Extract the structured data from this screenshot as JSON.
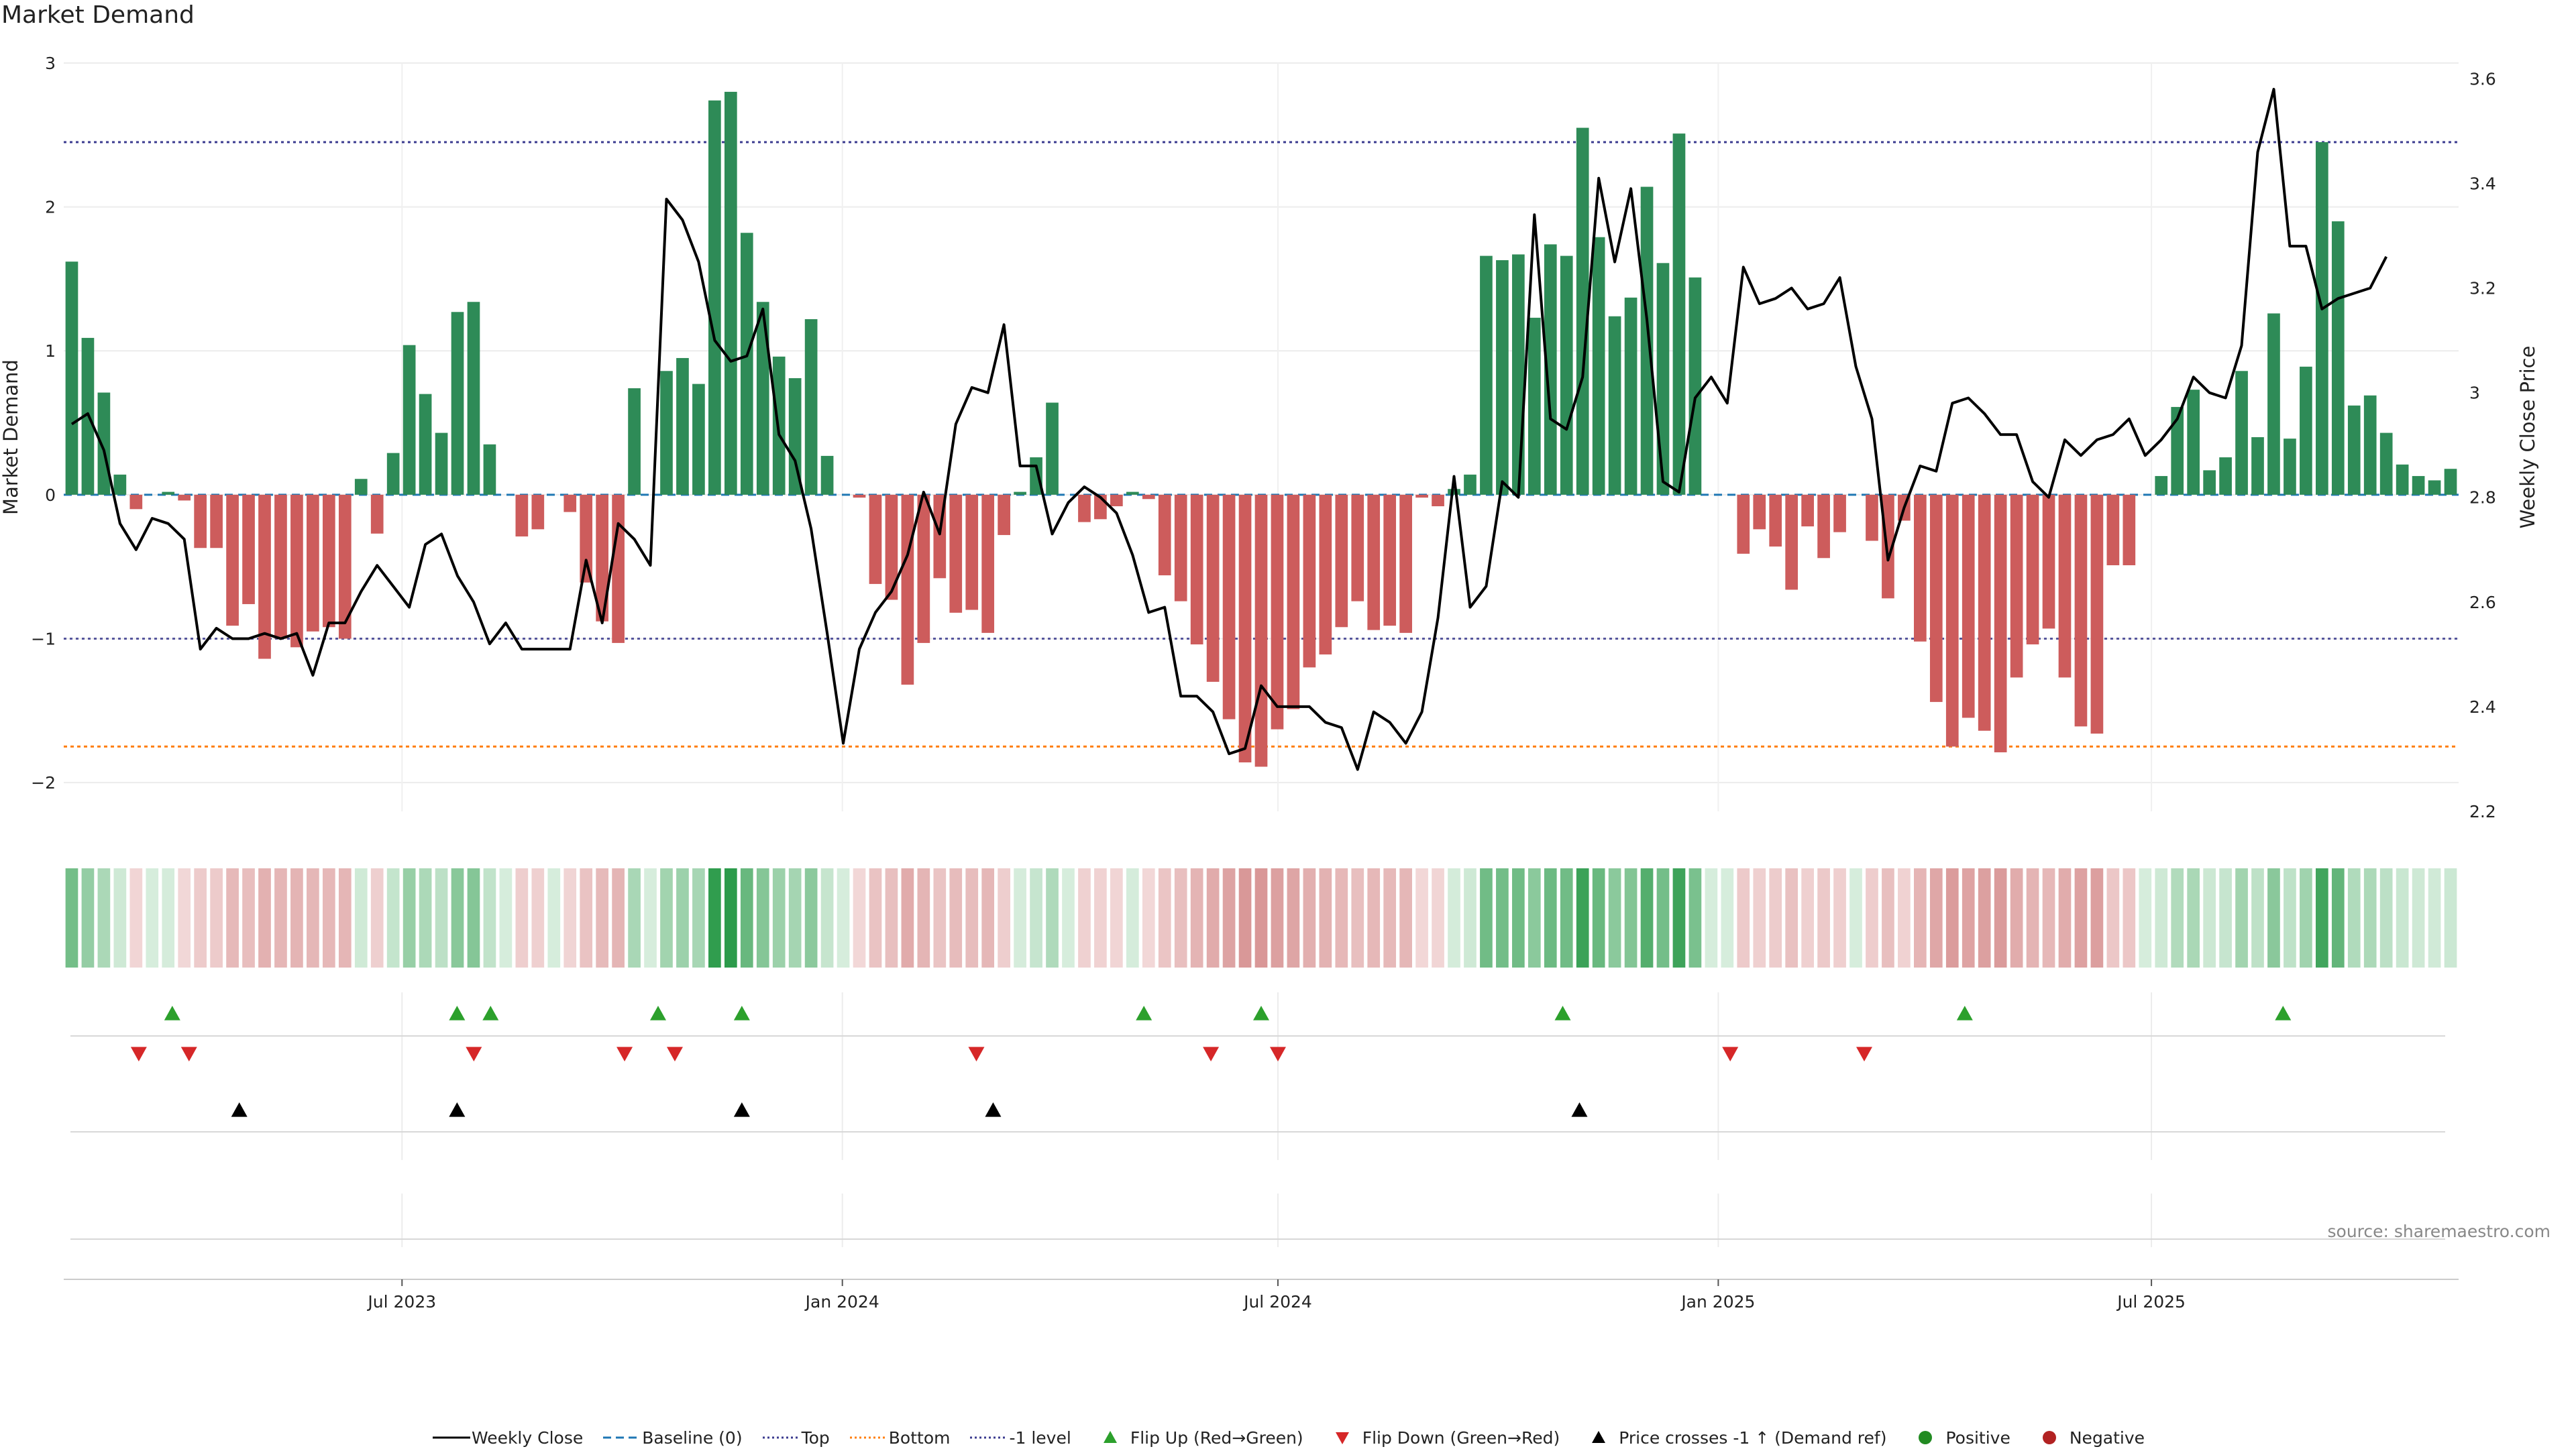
{
  "title": "Market Demand",
  "source": "source: sharemaestro.com",
  "colors": {
    "positive_bar": "#2e8b57",
    "negative_bar": "#cd5c5c",
    "price_line": "#000000",
    "baseline": "#1f77b4",
    "top": "#3b3b8f",
    "bottom": "#ff7f0e",
    "minus1": "#3b3b8f",
    "flip_up": "#2ca02c",
    "flip_down": "#d62728",
    "cross_marker": "#000000",
    "positive_dot": "#228b22",
    "negative_dot": "#b22222"
  },
  "legend": [
    {
      "label": "Weekly Close",
      "icon": "black-line-icon"
    },
    {
      "label": "Baseline (0)",
      "icon": "blue-dashed-line-icon"
    },
    {
      "label": "Top",
      "icon": "purple-dotted-line-icon"
    },
    {
      "label": "Bottom",
      "icon": "orange-dotted-line-icon"
    },
    {
      "label": "-1 level",
      "icon": "gray-dotted-line-icon"
    },
    {
      "label": "Flip Up (Red→Green)",
      "icon": "green-triangle-up-icon"
    },
    {
      "label": "Flip Down (Green→Red)",
      "icon": "red-triangle-down-icon"
    },
    {
      "label": "Price crosses -1 ↑ (Demand ref)",
      "icon": "black-triangle-up-icon"
    },
    {
      "label": "Positive",
      "icon": "green-dot-icon"
    },
    {
      "label": "Negative",
      "icon": "red-dot-icon"
    }
  ],
  "chart_data": {
    "type": "bar",
    "title": "Market Demand",
    "ylabel": "Market Demand",
    "y2label": "Weekly Close Price",
    "ylim": [
      -2.2,
      3.0
    ],
    "y2lim": [
      2.2,
      3.63
    ],
    "yticks": [
      "−2",
      "−1",
      "0",
      "1",
      "2",
      "3"
    ],
    "ytick_values": [
      -2,
      -1,
      0,
      1,
      2,
      3
    ],
    "y2ticks": [
      "2.2",
      "2.4",
      "2.6",
      "2.8",
      "3",
      "3.2",
      "3.4",
      "3.6"
    ],
    "y2tick_values": [
      2.2,
      2.4,
      2.6,
      2.8,
      3.0,
      3.2,
      3.4,
      3.6
    ],
    "x_start": "2023-02-13",
    "x_end": "2025-11-03",
    "xtick_labels": [
      "Jul 2023",
      "Jan 2024",
      "Jul 2024",
      "Jan 2025",
      "Jul 2025"
    ],
    "xtick_dates": [
      "2023-07-01",
      "2024-01-01",
      "2024-07-01",
      "2025-01-01",
      "2025-07-01"
    ],
    "levels": {
      "top": 2.45,
      "bottom": -1.75,
      "minus1": -1.0,
      "baseline": 0
    },
    "series": [
      {
        "name": "Market Demand",
        "kind": "bar",
        "values": [
          1.62,
          1.09,
          0.71,
          0.14,
          -0.1,
          0,
          0.02,
          -0.04,
          -0.37,
          -0.37,
          -0.91,
          -0.76,
          -1.14,
          -1.0,
          -1.06,
          -0.95,
          -0.92,
          -1.0,
          0.11,
          -0.27,
          0.29,
          1.04,
          0.7,
          0.43,
          1.27,
          1.34,
          0.35,
          0,
          -0.29,
          -0.24,
          0,
          -0.12,
          -0.61,
          -0.88,
          -1.03,
          0.74,
          0,
          0.86,
          0.95,
          0.77,
          2.74,
          2.8,
          1.82,
          1.34,
          0.96,
          0.81,
          1.22,
          0.27,
          0,
          -0.02,
          -0.62,
          -0.73,
          -1.32,
          -1.03,
          -0.58,
          -0.82,
          -0.8,
          -0.96,
          -0.28,
          0.02,
          0.26,
          0.64,
          0,
          -0.19,
          -0.17,
          -0.08,
          0.02,
          -0.03,
          -0.56,
          -0.74,
          -1.04,
          -1.3,
          -1.56,
          -1.86,
          -1.89,
          -1.63,
          -1.49,
          -1.2,
          -1.11,
          -0.92,
          -0.74,
          -0.94,
          -0.91,
          -0.96,
          -0.02,
          -0.08,
          0.04,
          0.14,
          1.66,
          1.63,
          1.67,
          1.23,
          1.74,
          1.66,
          2.55,
          1.79,
          1.24,
          1.37,
          2.14,
          1.61,
          2.51,
          1.51,
          0,
          0,
          -0.41,
          -0.24,
          -0.36,
          -0.66,
          -0.22,
          -0.44,
          -0.26,
          0,
          -0.32,
          -0.72,
          -0.18,
          -1.02,
          -1.44,
          -1.75,
          -1.55,
          -1.64,
          -1.79,
          -1.27,
          -1.04,
          -0.93,
          -1.27,
          -1.61,
          -1.66,
          -0.49,
          -0.49,
          0,
          0.13,
          0.61,
          0.73,
          0.17,
          0.26,
          0.86,
          0.4,
          1.26,
          0.39,
          0.89,
          2.45,
          1.9,
          0.62,
          0.69,
          0.43,
          0.21,
          0.13,
          0.1,
          0.18
        ]
      },
      {
        "name": "Weekly Close",
        "kind": "line",
        "values": [
          2.94,
          2.96,
          2.89,
          2.75,
          2.7,
          2.76,
          2.75,
          2.72,
          2.51,
          2.55,
          2.53,
          2.53,
          2.54,
          2.53,
          2.54,
          2.46,
          2.56,
          2.56,
          2.62,
          2.67,
          2.63,
          2.59,
          2.71,
          2.73,
          2.65,
          2.6,
          2.52,
          2.56,
          2.51,
          2.51,
          2.51,
          2.51,
          2.68,
          2.56,
          2.75,
          2.72,
          2.67,
          3.37,
          3.33,
          3.25,
          3.1,
          3.06,
          3.07,
          3.16,
          2.92,
          2.87,
          2.74,
          2.54,
          2.33,
          2.51,
          2.58,
          2.62,
          2.69,
          2.81,
          2.73,
          2.94,
          3.01,
          3.0,
          3.13,
          2.86,
          2.86,
          2.73,
          2.79,
          2.82,
          2.8,
          2.77,
          2.69,
          2.58,
          2.59,
          2.42,
          2.42,
          2.39,
          2.31,
          2.32,
          2.44,
          2.4,
          2.4,
          2.4,
          2.37,
          2.36,
          2.28,
          2.39,
          2.37,
          2.33,
          2.39,
          2.57,
          2.84,
          2.59,
          2.63,
          2.83,
          2.8,
          3.34,
          2.95,
          2.93,
          3.03,
          3.41,
          3.25,
          3.39,
          3.14,
          2.83,
          2.81,
          2.99,
          3.03,
          2.98,
          3.24,
          3.17,
          3.18,
          3.2,
          3.16,
          3.17,
          3.22,
          3.05,
          2.95,
          2.68,
          2.78,
          2.86,
          2.85,
          2.98,
          2.99,
          2.96,
          2.92,
          2.92,
          2.83,
          2.8,
          2.91,
          2.88,
          2.91,
          2.92,
          2.95,
          2.88,
          2.91,
          2.95,
          3.03,
          3.0,
          2.99,
          3.09,
          3.46,
          3.58,
          3.28,
          3.28,
          3.16,
          3.18,
          3.19,
          3.2,
          3.26
        ]
      }
    ],
    "heatmap": {
      "type": "heatmap",
      "description_values": "same as Market Demand series"
    },
    "flip_up_dates": [
      "2023-03-27",
      "2023-07-24",
      "2023-08-07",
      "2023-10-16",
      "2023-11-20",
      "2024-05-06",
      "2024-06-24",
      "2024-10-28",
      "2025-04-14",
      "2025-08-25"
    ],
    "flip_down_dates": [
      "2023-03-13",
      "2023-04-03",
      "2023-07-31",
      "2023-10-02",
      "2023-10-23",
      "2024-02-26",
      "2024-06-03",
      "2024-07-01",
      "2025-01-06",
      "2025-03-03"
    ],
    "cross_dates": [
      "2023-04-24",
      "2023-07-24",
      "2023-11-20",
      "2024-03-04",
      "2024-11-04"
    ]
  }
}
